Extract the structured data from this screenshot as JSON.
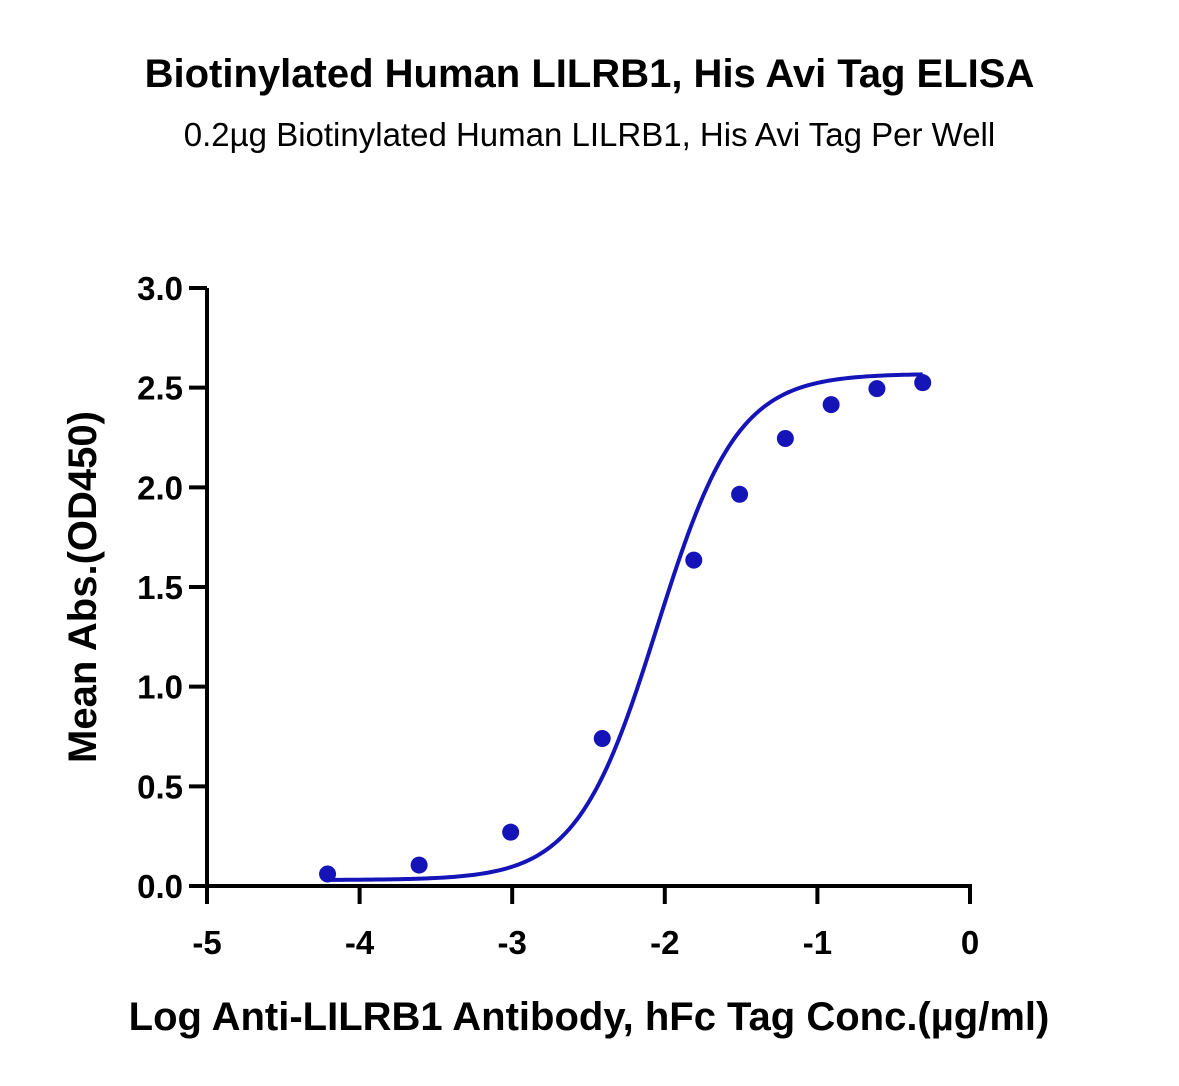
{
  "chart_data": {
    "type": "scatter",
    "title": "Biotinylated Human LILRB1, His Avi Tag ELISA",
    "subtitle": "0.2µg Biotinylated Human LILRB1, His Avi Tag Per Well",
    "xlabel": "Log Anti-LILRB1 Antibody, hFc Tag Conc.(µg/ml)",
    "ylabel": "Mean Abs.(OD450)",
    "xlim": [
      -5,
      0
    ],
    "ylim": [
      0,
      3.0
    ],
    "x_ticks": [
      -5,
      -4,
      -3,
      -2,
      -1,
      0
    ],
    "x_tick_labels": [
      "-5",
      "-4",
      "-3",
      "-2",
      "-1",
      "0"
    ],
    "y_ticks": [
      0,
      0.5,
      1.0,
      1.5,
      2.0,
      2.5,
      3.0
    ],
    "y_tick_labels": [
      "0.0",
      "0.5",
      "1.0",
      "1.5",
      "2.0",
      "2.5",
      "3.0"
    ],
    "grid": false,
    "legend": "none",
    "series_color": "#1414b8",
    "series": [
      {
        "x": [
          -4.21,
          -3.61,
          -3.01,
          -2.41,
          -1.81,
          -1.51,
          -1.21,
          -0.91,
          -0.61,
          -0.31
        ],
        "y": [
          0.06,
          0.105,
          0.27,
          0.74,
          1.635,
          1.965,
          2.245,
          2.415,
          2.495,
          2.525
        ],
        "fit_curve": "sigmoid"
      }
    ]
  }
}
